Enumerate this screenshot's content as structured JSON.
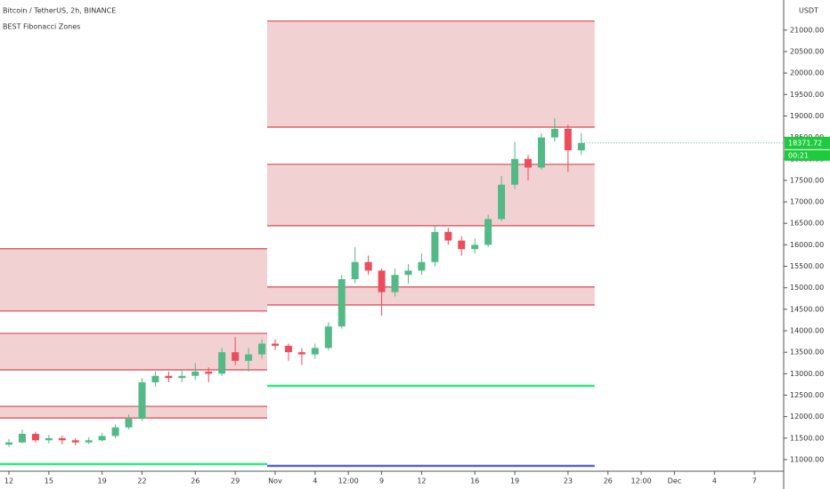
{
  "chart_data": {
    "type": "candlestick",
    "title": "Bitcoin / TetherUS, 2h, BINANCE",
    "indicator": "BEST Fibonacci Zones",
    "currency": "USDT",
    "last_price": 18371.72,
    "countdown": "00:21",
    "up_color": "#53b987",
    "down_color": "#eb4d5c",
    "x": [
      0,
      1,
      2,
      3,
      4,
      5,
      6,
      7,
      8,
      9,
      10,
      11,
      12,
      13,
      14,
      15,
      16,
      17,
      18,
      19,
      20,
      21,
      22,
      23,
      24,
      25,
      26,
      27,
      28,
      29,
      30,
      31,
      32,
      33,
      34,
      35,
      36,
      37,
      38,
      39,
      40,
      41,
      42,
      43
    ],
    "open": [
      11350,
      11400,
      11600,
      11450,
      11500,
      11450,
      11400,
      11450,
      11550,
      11750,
      11950,
      12800,
      12950,
      12900,
      12950,
      13050,
      13000,
      13500,
      13300,
      13450,
      13700,
      13650,
      13500,
      13450,
      13600,
      14100,
      15200,
      15600,
      15400,
      14900,
      15300,
      15400,
      15600,
      16300,
      16100,
      15900,
      16000,
      16600,
      17400,
      18000,
      17800,
      18500,
      18700,
      18200
    ],
    "high": [
      11480,
      11700,
      11650,
      11580,
      11560,
      11500,
      11520,
      11620,
      11820,
      12050,
      12900,
      13050,
      13050,
      13100,
      13250,
      13150,
      13600,
      13850,
      13600,
      13800,
      13800,
      13700,
      13600,
      13700,
      14200,
      15300,
      15950,
      15750,
      15450,
      15450,
      15550,
      15800,
      16450,
      16400,
      16200,
      16150,
      16700,
      17600,
      18400,
      18100,
      18600,
      18950,
      18800,
      18600
    ],
    "low": [
      11300,
      11380,
      11400,
      11380,
      11350,
      11330,
      11360,
      11420,
      11500,
      11700,
      11900,
      12700,
      12800,
      12800,
      12850,
      12800,
      12950,
      13200,
      13050,
      13350,
      13550,
      13300,
      13200,
      13350,
      13550,
      14050,
      15100,
      15300,
      14350,
      14800,
      15100,
      15300,
      15500,
      16000,
      15750,
      15800,
      15950,
      16550,
      17300,
      17500,
      17750,
      18400,
      17700,
      18100
    ],
    "close": [
      11400,
      11600,
      11450,
      11500,
      11450,
      11400,
      11450,
      11550,
      11750,
      11950,
      12800,
      12950,
      12900,
      12950,
      13050,
      13000,
      13500,
      13300,
      13450,
      13700,
      13650,
      13500,
      13450,
      13600,
      14100,
      15200,
      15600,
      15400,
      14900,
      15300,
      15400,
      15600,
      16300,
      16100,
      15900,
      16000,
      16600,
      17400,
      18000,
      17800,
      18500,
      18700,
      18200,
      18371.72
    ],
    "zones": [
      {
        "from": -0.67,
        "to": 19.4,
        "low": 14460,
        "high": 15910
      },
      {
        "from": -0.67,
        "to": 19.4,
        "low": 13090,
        "high": 13940
      },
      {
        "from": -0.67,
        "to": 19.4,
        "low": 11970,
        "high": 12240
      },
      {
        "from": 19.4,
        "to": 44.0,
        "low": 18740,
        "high": 21210
      },
      {
        "from": 19.4,
        "to": 44.0,
        "low": 16445,
        "high": 17875
      },
      {
        "from": 19.4,
        "to": 44.0,
        "low": 14600,
        "high": 15020
      }
    ],
    "zone_color": "#f2d1d3",
    "zone_border": "#d9474f",
    "levels": [
      {
        "value": 10896,
        "from": -0.67,
        "to": 19.4,
        "color": "#2ee87e"
      },
      {
        "value": 12718,
        "from": 19.4,
        "to": 44.0,
        "color": "#2ee87e"
      },
      {
        "value": 10855,
        "from": 19.4,
        "to": 44.0,
        "color": "#5b63c8"
      }
    ],
    "xlim": [
      -0.67,
      58.2
    ],
    "ylim": [
      10730,
      21700
    ],
    "xticks": [
      {
        "value": 0,
        "label": "12"
      },
      {
        "value": 3,
        "label": "15"
      },
      {
        "value": 7,
        "label": "19"
      },
      {
        "value": 10,
        "label": "22"
      },
      {
        "value": 14,
        "label": "26"
      },
      {
        "value": 17,
        "label": "29"
      },
      {
        "value": 20,
        "label": "Nov"
      },
      {
        "value": 23,
        "label": "4"
      },
      {
        "value": 25.5,
        "label": "12:00"
      },
      {
        "value": 28,
        "label": "9"
      },
      {
        "value": 31,
        "label": "12"
      },
      {
        "value": 35,
        "label": "16"
      },
      {
        "value": 38,
        "label": "19"
      },
      {
        "value": 42,
        "label": "23"
      },
      {
        "value": 45,
        "label": "26"
      },
      {
        "value": 47.5,
        "label": "12:00"
      },
      {
        "value": 50,
        "label": "Dec"
      },
      {
        "value": 53,
        "label": "4"
      },
      {
        "value": 56,
        "label": "7"
      }
    ],
    "yticks": [
      {
        "value": 21000,
        "label": "21000.00"
      },
      {
        "value": 20500,
        "label": "20500.00"
      },
      {
        "value": 20000,
        "label": "20000.00"
      },
      {
        "value": 19500,
        "label": "19500.00"
      },
      {
        "value": 19000,
        "label": "19000.00"
      },
      {
        "value": 18500,
        "label": "18500.00"
      },
      {
        "value": 18000,
        "label": "18000.00"
      },
      {
        "value": 17500,
        "label": "17500.00"
      },
      {
        "value": 17000,
        "label": "17000.00"
      },
      {
        "value": 16500,
        "label": "16500.00"
      },
      {
        "value": 16000,
        "label": "16000.00"
      },
      {
        "value": 15500,
        "label": "15500.00"
      },
      {
        "value": 15000,
        "label": "15000.00"
      },
      {
        "value": 14500,
        "label": "14500.00"
      },
      {
        "value": 14000,
        "label": "14000.00"
      },
      {
        "value": 13500,
        "label": "13500.00"
      },
      {
        "value": 13000,
        "label": "13000.00"
      },
      {
        "value": 12500,
        "label": "12500.00"
      },
      {
        "value": 12000,
        "label": "12000.00"
      },
      {
        "value": 11500,
        "label": "11500.00"
      },
      {
        "value": 11000,
        "label": "11000.00"
      }
    ]
  }
}
